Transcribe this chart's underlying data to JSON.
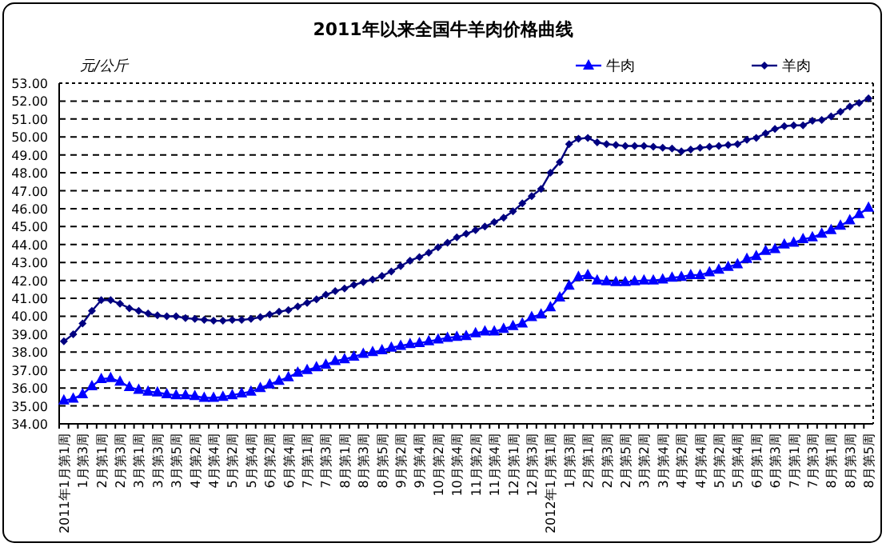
{
  "chart_data": {
    "type": "line",
    "title": "2011年以来全国牛羊肉价格曲线",
    "ylabel": "元/公斤",
    "categories": [
      "2011年1月第1周",
      null,
      "1月第3周",
      null,
      "2月第1周",
      null,
      "2月第3周",
      null,
      "3月第1周",
      null,
      "3月第3周",
      null,
      "3月第5周",
      null,
      "4月第2周",
      null,
      "4月第4周",
      null,
      "5月第2周",
      null,
      "5月第4周",
      null,
      "6月第2周",
      null,
      "6月第4周",
      null,
      "7月第1周",
      null,
      "7月第3周",
      null,
      "8月第1周",
      null,
      "8月第3周",
      null,
      "8月第5周",
      null,
      "9月第2周",
      null,
      "9月第4周",
      null,
      "10月第2周",
      null,
      "10月第4周",
      null,
      "11月第2周",
      null,
      "11月第4周",
      null,
      "12月第1周",
      null,
      "12月第3周",
      null,
      "2012年1月第1周",
      null,
      "1月第3周",
      null,
      "2月第1周",
      null,
      "2月第3周",
      null,
      "2月第5周",
      null,
      "3月第2周",
      null,
      "3月第4周",
      null,
      "4月第2周",
      null,
      "4月第4周",
      null,
      "5月第2周",
      null,
      "5月第4周",
      null,
      "6月第1周",
      null,
      "6月第3周",
      null,
      "7月第1周",
      null,
      "7月第3周",
      null,
      "8月第1周",
      null,
      "8月第3周",
      null,
      "8月第5周"
    ],
    "series": [
      {
        "name": "牛肉",
        "color": "#0000ff",
        "marker": "triangle",
        "values": [
          35.3,
          35.4,
          35.65,
          36.1,
          36.5,
          36.55,
          36.35,
          36.05,
          35.9,
          35.8,
          35.75,
          35.65,
          35.6,
          35.6,
          35.55,
          35.45,
          35.45,
          35.5,
          35.6,
          35.7,
          35.8,
          36.0,
          36.2,
          36.4,
          36.6,
          36.85,
          37.0,
          37.15,
          37.3,
          37.5,
          37.6,
          37.75,
          37.9,
          38.0,
          38.1,
          38.25,
          38.35,
          38.45,
          38.5,
          38.6,
          38.7,
          38.8,
          38.85,
          38.9,
          39.05,
          39.15,
          39.15,
          39.3,
          39.45,
          39.6,
          39.95,
          40.1,
          40.5,
          41.05,
          41.7,
          42.2,
          42.3,
          42.0,
          41.95,
          41.9,
          41.9,
          41.95,
          42.0,
          42.0,
          42.05,
          42.15,
          42.2,
          42.3,
          42.3,
          42.45,
          42.6,
          42.75,
          42.9,
          43.2,
          43.35,
          43.65,
          43.75,
          44.0,
          44.1,
          44.3,
          44.4,
          44.6,
          44.8,
          45.05,
          45.35,
          45.7,
          46.05
        ]
      },
      {
        "name": "羊肉",
        "color": "#000080",
        "marker": "diamond",
        "values": [
          38.6,
          39.0,
          39.6,
          40.3,
          40.9,
          40.9,
          40.7,
          40.45,
          40.3,
          40.15,
          40.05,
          40.0,
          40.0,
          39.9,
          39.85,
          39.8,
          39.75,
          39.75,
          39.8,
          39.8,
          39.85,
          39.95,
          40.1,
          40.25,
          40.35,
          40.55,
          40.75,
          40.95,
          41.2,
          41.4,
          41.55,
          41.75,
          41.9,
          42.05,
          42.25,
          42.5,
          42.8,
          43.1,
          43.3,
          43.55,
          43.85,
          44.1,
          44.4,
          44.6,
          44.8,
          45.0,
          45.25,
          45.5,
          45.85,
          46.3,
          46.7,
          47.1,
          48.0,
          48.6,
          49.6,
          49.9,
          49.95,
          49.7,
          49.6,
          49.55,
          49.5,
          49.5,
          49.5,
          49.45,
          49.4,
          49.35,
          49.2,
          49.3,
          49.4,
          49.45,
          49.5,
          49.55,
          49.6,
          49.85,
          49.95,
          50.2,
          50.45,
          50.6,
          50.65,
          50.65,
          50.9,
          50.95,
          51.15,
          51.4,
          51.7,
          51.9,
          52.15
        ]
      }
    ],
    "ylim": [
      34,
      53
    ],
    "yticks": [
      {
        "value": 34,
        "label": "34.00"
      },
      {
        "value": 35,
        "label": "35.00"
      },
      {
        "value": 36,
        "label": "36.00"
      },
      {
        "value": 37,
        "label": "37.00"
      },
      {
        "value": 38,
        "label": "38.00"
      },
      {
        "value": 39,
        "label": "39.00"
      },
      {
        "value": 40,
        "label": "40.00"
      },
      {
        "value": 41,
        "label": "41.00"
      },
      {
        "value": 42,
        "label": "42.00"
      },
      {
        "value": 43,
        "label": "43.00"
      },
      {
        "value": 44,
        "label": "44.00"
      },
      {
        "value": 45,
        "label": "45.00"
      },
      {
        "value": 46,
        "label": "46.00"
      },
      {
        "value": 47,
        "label": "47.00"
      },
      {
        "value": 48,
        "label": "48.00"
      },
      {
        "value": 49,
        "label": "49.00"
      },
      {
        "value": 50,
        "label": "50.00"
      },
      {
        "value": 51,
        "label": "51.00"
      },
      {
        "value": 52,
        "label": "52.00"
      },
      {
        "value": 53,
        "label": "53.00"
      }
    ],
    "grid": "y",
    "legend": "top right"
  }
}
